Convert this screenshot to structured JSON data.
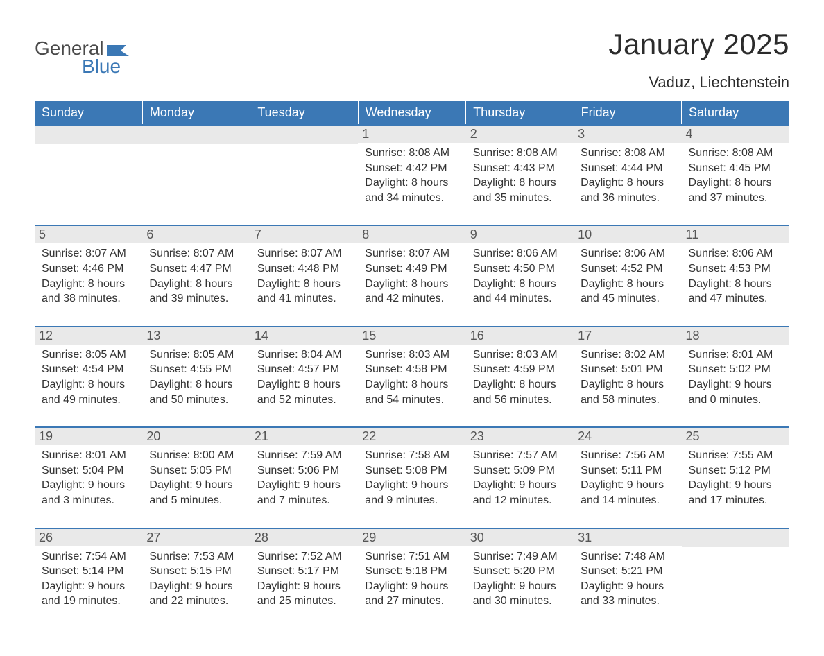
{
  "logo": {
    "text1": "General",
    "text2": "Blue",
    "flag_color": "#3b78b5"
  },
  "title": "January 2025",
  "location": "Vaduz, Liechtenstein",
  "colors": {
    "header_bg": "#3b78b5",
    "header_text": "#ffffff",
    "daynum_bg": "#e9e9e9",
    "row_border": "#3b78b5",
    "body_text": "#333333",
    "background": "#ffffff"
  },
  "day_headers": [
    "Sunday",
    "Monday",
    "Tuesday",
    "Wednesday",
    "Thursday",
    "Friday",
    "Saturday"
  ],
  "weeks": [
    [
      null,
      null,
      null,
      {
        "n": "1",
        "sunrise": "8:08 AM",
        "sunset": "4:42 PM",
        "dh": "8",
        "dm": "34"
      },
      {
        "n": "2",
        "sunrise": "8:08 AM",
        "sunset": "4:43 PM",
        "dh": "8",
        "dm": "35"
      },
      {
        "n": "3",
        "sunrise": "8:08 AM",
        "sunset": "4:44 PM",
        "dh": "8",
        "dm": "36"
      },
      {
        "n": "4",
        "sunrise": "8:08 AM",
        "sunset": "4:45 PM",
        "dh": "8",
        "dm": "37"
      }
    ],
    [
      {
        "n": "5",
        "sunrise": "8:07 AM",
        "sunset": "4:46 PM",
        "dh": "8",
        "dm": "38"
      },
      {
        "n": "6",
        "sunrise": "8:07 AM",
        "sunset": "4:47 PM",
        "dh": "8",
        "dm": "39"
      },
      {
        "n": "7",
        "sunrise": "8:07 AM",
        "sunset": "4:48 PM",
        "dh": "8",
        "dm": "41"
      },
      {
        "n": "8",
        "sunrise": "8:07 AM",
        "sunset": "4:49 PM",
        "dh": "8",
        "dm": "42"
      },
      {
        "n": "9",
        "sunrise": "8:06 AM",
        "sunset": "4:50 PM",
        "dh": "8",
        "dm": "44"
      },
      {
        "n": "10",
        "sunrise": "8:06 AM",
        "sunset": "4:52 PM",
        "dh": "8",
        "dm": "45"
      },
      {
        "n": "11",
        "sunrise": "8:06 AM",
        "sunset": "4:53 PM",
        "dh": "8",
        "dm": "47"
      }
    ],
    [
      {
        "n": "12",
        "sunrise": "8:05 AM",
        "sunset": "4:54 PM",
        "dh": "8",
        "dm": "49"
      },
      {
        "n": "13",
        "sunrise": "8:05 AM",
        "sunset": "4:55 PM",
        "dh": "8",
        "dm": "50"
      },
      {
        "n": "14",
        "sunrise": "8:04 AM",
        "sunset": "4:57 PM",
        "dh": "8",
        "dm": "52"
      },
      {
        "n": "15",
        "sunrise": "8:03 AM",
        "sunset": "4:58 PM",
        "dh": "8",
        "dm": "54"
      },
      {
        "n": "16",
        "sunrise": "8:03 AM",
        "sunset": "4:59 PM",
        "dh": "8",
        "dm": "56"
      },
      {
        "n": "17",
        "sunrise": "8:02 AM",
        "sunset": "5:01 PM",
        "dh": "8",
        "dm": "58"
      },
      {
        "n": "18",
        "sunrise": "8:01 AM",
        "sunset": "5:02 PM",
        "dh": "9",
        "dm": "0"
      }
    ],
    [
      {
        "n": "19",
        "sunrise": "8:01 AM",
        "sunset": "5:04 PM",
        "dh": "9",
        "dm": "3"
      },
      {
        "n": "20",
        "sunrise": "8:00 AM",
        "sunset": "5:05 PM",
        "dh": "9",
        "dm": "5"
      },
      {
        "n": "21",
        "sunrise": "7:59 AM",
        "sunset": "5:06 PM",
        "dh": "9",
        "dm": "7"
      },
      {
        "n": "22",
        "sunrise": "7:58 AM",
        "sunset": "5:08 PM",
        "dh": "9",
        "dm": "9"
      },
      {
        "n": "23",
        "sunrise": "7:57 AM",
        "sunset": "5:09 PM",
        "dh": "9",
        "dm": "12"
      },
      {
        "n": "24",
        "sunrise": "7:56 AM",
        "sunset": "5:11 PM",
        "dh": "9",
        "dm": "14"
      },
      {
        "n": "25",
        "sunrise": "7:55 AM",
        "sunset": "5:12 PM",
        "dh": "9",
        "dm": "17"
      }
    ],
    [
      {
        "n": "26",
        "sunrise": "7:54 AM",
        "sunset": "5:14 PM",
        "dh": "9",
        "dm": "19"
      },
      {
        "n": "27",
        "sunrise": "7:53 AM",
        "sunset": "5:15 PM",
        "dh": "9",
        "dm": "22"
      },
      {
        "n": "28",
        "sunrise": "7:52 AM",
        "sunset": "5:17 PM",
        "dh": "9",
        "dm": "25"
      },
      {
        "n": "29",
        "sunrise": "7:51 AM",
        "sunset": "5:18 PM",
        "dh": "9",
        "dm": "27"
      },
      {
        "n": "30",
        "sunrise": "7:49 AM",
        "sunset": "5:20 PM",
        "dh": "9",
        "dm": "30"
      },
      {
        "n": "31",
        "sunrise": "7:48 AM",
        "sunset": "5:21 PM",
        "dh": "9",
        "dm": "33"
      },
      null
    ]
  ]
}
